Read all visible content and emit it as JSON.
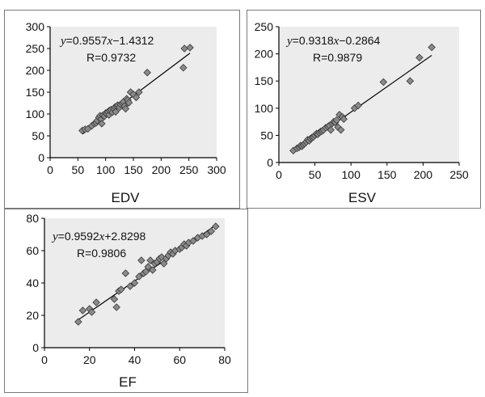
{
  "chart_data": [
    {
      "id": "edv",
      "type": "scatter",
      "title": "",
      "xlabel": "EDV",
      "ylabel": "",
      "xlim": [
        0,
        300
      ],
      "ylim": [
        0,
        300
      ],
      "xticks": [
        "0",
        "50",
        "100",
        "150",
        "200",
        "250",
        "300"
      ],
      "yticks": [
        "0",
        "50",
        "100",
        "150",
        "200",
        "250",
        "300"
      ],
      "equation": {
        "y": "y",
        "mid": "=0.9557",
        "x": "x",
        "rest": "−1.4312"
      },
      "r_label": "R=0.9732",
      "fit": {
        "slope": 0.9557,
        "intercept": -1.4312,
        "x_range": [
          58,
          252
        ]
      },
      "points": [
        [
          58,
          62
        ],
        [
          63,
          65
        ],
        [
          68,
          66
        ],
        [
          75,
          73
        ],
        [
          80,
          78
        ],
        [
          83,
          80
        ],
        [
          85,
          85
        ],
        [
          88,
          92
        ],
        [
          90,
          96
        ],
        [
          92,
          88
        ],
        [
          93,
          78
        ],
        [
          95,
          97
        ],
        [
          98,
          95
        ],
        [
          100,
          102
        ],
        [
          102,
          100
        ],
        [
          104,
          105
        ],
        [
          106,
          98
        ],
        [
          107,
          108
        ],
        [
          110,
          110
        ],
        [
          112,
          104
        ],
        [
          115,
          112
        ],
        [
          117,
          116
        ],
        [
          118,
          105
        ],
        [
          120,
          118
        ],
        [
          122,
          120
        ],
        [
          125,
          115
        ],
        [
          127,
          122
        ],
        [
          130,
          125
        ],
        [
          132,
          128
        ],
        [
          134,
          118
        ],
        [
          136,
          112
        ],
        [
          138,
          135
        ],
        [
          140,
          132
        ],
        [
          142,
          126
        ],
        [
          145,
          150
        ],
        [
          150,
          145
        ],
        [
          155,
          138
        ],
        [
          160,
          150
        ],
        [
          175,
          195
        ],
        [
          240,
          206
        ],
        [
          242,
          250
        ],
        [
          252,
          252
        ]
      ]
    },
    {
      "id": "esv",
      "type": "scatter",
      "title": "",
      "xlabel": "ESV",
      "ylabel": "",
      "xlim": [
        0,
        250
      ],
      "ylim": [
        0,
        250
      ],
      "xticks": [
        "0",
        "50",
        "100",
        "150",
        "200",
        "250"
      ],
      "yticks": [
        "0",
        "50",
        "100",
        "150",
        "200",
        "250"
      ],
      "equation": {
        "y": "y",
        "mid": "=0.9318",
        "x": "x",
        "rest": "−0.2864"
      },
      "r_label": "R=0.9879",
      "fit": {
        "slope": 0.9318,
        "intercept": -0.2864,
        "x_range": [
          20,
          212
        ]
      },
      "points": [
        [
          20,
          22
        ],
        [
          25,
          26
        ],
        [
          28,
          28
        ],
        [
          30,
          31
        ],
        [
          32,
          30
        ],
        [
          34,
          33
        ],
        [
          36,
          35
        ],
        [
          38,
          38
        ],
        [
          40,
          42
        ],
        [
          42,
          40
        ],
        [
          44,
          44
        ],
        [
          46,
          46
        ],
        [
          48,
          47
        ],
        [
          50,
          50
        ],
        [
          52,
          53
        ],
        [
          54,
          52
        ],
        [
          56,
          55
        ],
        [
          58,
          57
        ],
        [
          60,
          58
        ],
        [
          62,
          60
        ],
        [
          65,
          64
        ],
        [
          68,
          66
        ],
        [
          70,
          68
        ],
        [
          72,
          60
        ],
        [
          74,
          72
        ],
        [
          76,
          75
        ],
        [
          78,
          74
        ],
        [
          80,
          78
        ],
        [
          82,
          65
        ],
        [
          84,
          88
        ],
        [
          86,
          60
        ],
        [
          88,
          84
        ],
        [
          90,
          80
        ],
        [
          105,
          100
        ],
        [
          110,
          105
        ],
        [
          145,
          148
        ],
        [
          182,
          150
        ],
        [
          195,
          193
        ],
        [
          212,
          212
        ]
      ]
    },
    {
      "id": "ef",
      "type": "scatter",
      "title": "",
      "xlabel": "EF",
      "ylabel": "",
      "xlim": [
        0,
        80
      ],
      "ylim": [
        0,
        80
      ],
      "xticks": [
        "0",
        "20",
        "40",
        "60",
        "80"
      ],
      "yticks": [
        "0",
        "20",
        "40",
        "60",
        "80"
      ],
      "equation": {
        "y": "y",
        "mid": "=0.9592",
        "x": "x",
        "rest": "+2.8298"
      },
      "r_label": "R=0.9806",
      "fit": {
        "slope": 0.9592,
        "intercept": 2.8298,
        "x_range": [
          15,
          76
        ]
      },
      "points": [
        [
          15,
          16
        ],
        [
          17,
          23
        ],
        [
          20,
          24
        ],
        [
          21,
          22
        ],
        [
          23,
          28
        ],
        [
          31,
          30
        ],
        [
          32,
          25
        ],
        [
          33,
          35
        ],
        [
          34,
          36
        ],
        [
          36,
          46
        ],
        [
          38,
          38
        ],
        [
          40,
          40
        ],
        [
          42,
          44
        ],
        [
          43,
          54
        ],
        [
          44,
          46
        ],
        [
          45,
          47
        ],
        [
          46,
          50
        ],
        [
          47,
          54
        ],
        [
          48,
          48
        ],
        [
          49,
          52
        ],
        [
          50,
          53
        ],
        [
          51,
          55
        ],
        [
          52,
          56
        ],
        [
          53,
          52
        ],
        [
          54,
          55
        ],
        [
          55,
          57
        ],
        [
          56,
          59
        ],
        [
          57,
          58
        ],
        [
          58,
          60
        ],
        [
          60,
          61
        ],
        [
          61,
          62
        ],
        [
          62,
          64
        ],
        [
          63,
          63
        ],
        [
          64,
          65
        ],
        [
          66,
          66
        ],
        [
          68,
          68
        ],
        [
          70,
          69
        ],
        [
          72,
          70
        ],
        [
          74,
          72
        ],
        [
          76,
          75
        ]
      ]
    }
  ]
}
